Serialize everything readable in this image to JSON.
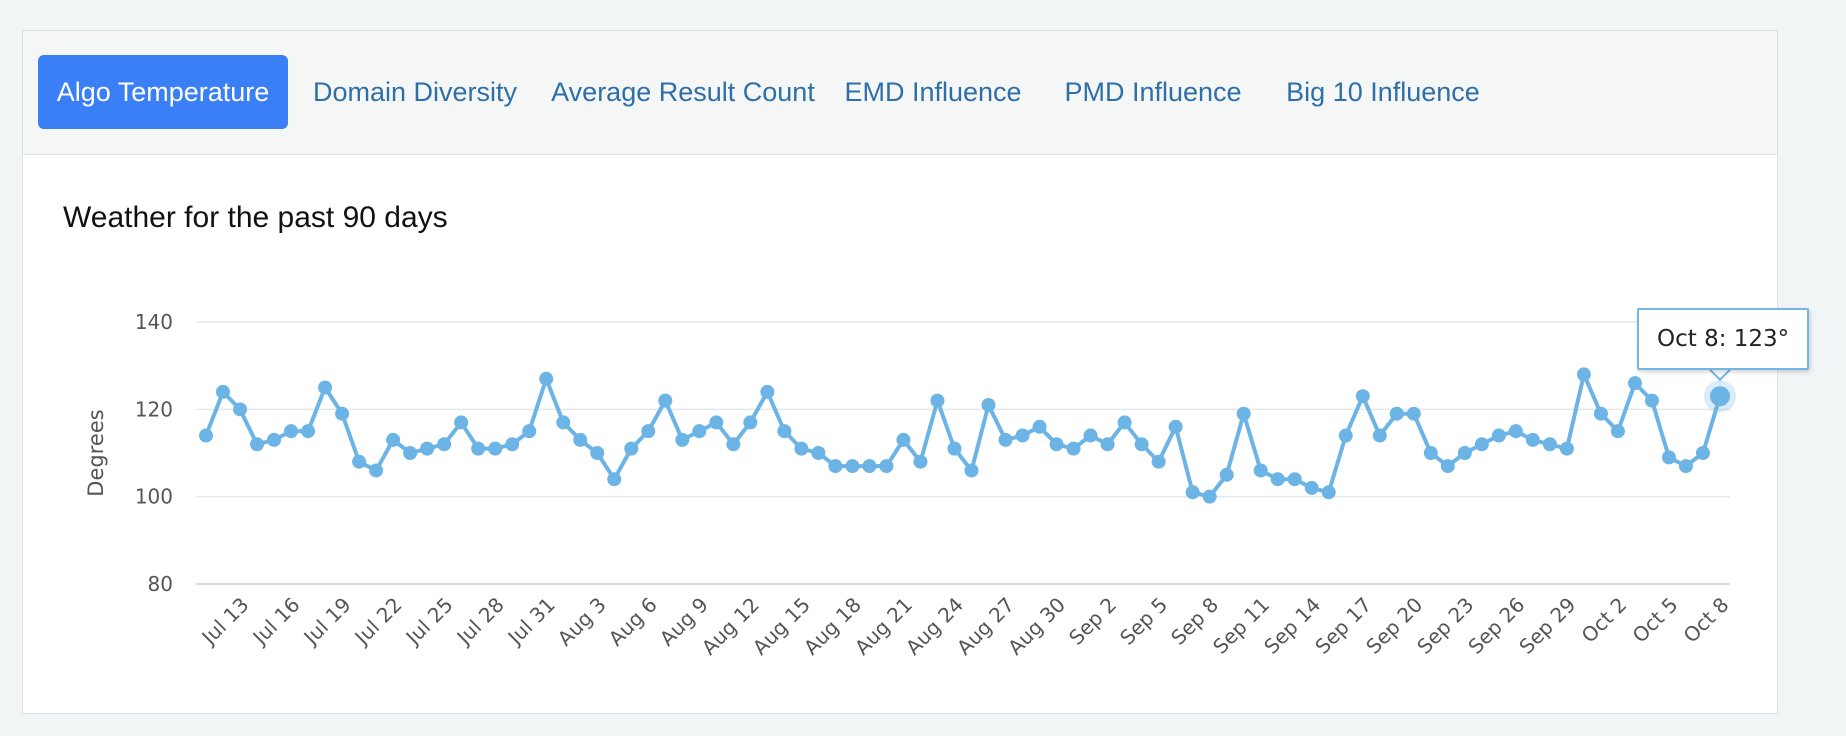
{
  "tabs": [
    {
      "label": "Algo Temperature",
      "active": true
    },
    {
      "label": "Domain Diversity",
      "active": false
    },
    {
      "label": "Average Result Count",
      "active": false
    },
    {
      "label": "EMD Influence",
      "active": false
    },
    {
      "label": "PMD Influence",
      "active": false
    },
    {
      "label": "Big 10 Influence",
      "active": false
    }
  ],
  "colors": {
    "accent": "#3a7ff6",
    "line": "#6cb4e6",
    "tab_text": "#2e6fa8"
  },
  "tooltip": {
    "text": "Oct 8: 123°"
  },
  "chart_data": {
    "type": "line",
    "title": "Weather for the past 90 days",
    "xlabel": "",
    "ylabel": "Degrees",
    "ylim": [
      80,
      140
    ],
    "yticks": [
      80,
      100,
      120,
      140
    ],
    "grid": true,
    "x": [
      "Jul 11",
      "Jul 12",
      "Jul 13",
      "Jul 14",
      "Jul 15",
      "Jul 16",
      "Jul 17",
      "Jul 18",
      "Jul 19",
      "Jul 20",
      "Jul 21",
      "Jul 22",
      "Jul 23",
      "Jul 24",
      "Jul 25",
      "Jul 26",
      "Jul 27",
      "Jul 28",
      "Jul 29",
      "Jul 30",
      "Jul 31",
      "Aug 1",
      "Aug 2",
      "Aug 3",
      "Aug 4",
      "Aug 5",
      "Aug 6",
      "Aug 7",
      "Aug 8",
      "Aug 9",
      "Aug 10",
      "Aug 11",
      "Aug 12",
      "Aug 13",
      "Aug 14",
      "Aug 15",
      "Aug 16",
      "Aug 17",
      "Aug 18",
      "Aug 19",
      "Aug 20",
      "Aug 21",
      "Aug 22",
      "Aug 23",
      "Aug 24",
      "Aug 25",
      "Aug 26",
      "Aug 27",
      "Aug 28",
      "Aug 29",
      "Aug 30",
      "Aug 31",
      "Sep 1",
      "Sep 2",
      "Sep 3",
      "Sep 4",
      "Sep 5",
      "Sep 6",
      "Sep 7",
      "Sep 8",
      "Sep 9",
      "Sep 10",
      "Sep 11",
      "Sep 12",
      "Sep 13",
      "Sep 14",
      "Sep 15",
      "Sep 16",
      "Sep 17",
      "Sep 18",
      "Sep 19",
      "Sep 20",
      "Sep 21",
      "Sep 22",
      "Sep 23",
      "Sep 24",
      "Sep 25",
      "Sep 26",
      "Sep 27",
      "Sep 28",
      "Sep 29",
      "Sep 30",
      "Oct 1",
      "Oct 2",
      "Oct 3",
      "Oct 4",
      "Oct 5",
      "Oct 6",
      "Oct 7",
      "Oct 8"
    ],
    "xticks": [
      "Jul 13",
      "Jul 16",
      "Jul 19",
      "Jul 22",
      "Jul 25",
      "Jul 28",
      "Jul 31",
      "Aug 3",
      "Aug 6",
      "Aug 9",
      "Aug 12",
      "Aug 15",
      "Aug 18",
      "Aug 21",
      "Aug 24",
      "Aug 27",
      "Aug 30",
      "Sep 2",
      "Sep 5",
      "Sep 8",
      "Sep 11",
      "Sep 14",
      "Sep 17",
      "Sep 20",
      "Sep 23",
      "Sep 26",
      "Sep 29",
      "Oct 2",
      "Oct 5",
      "Oct 8"
    ],
    "series": [
      {
        "values": [
          114,
          124,
          120,
          112,
          113,
          115,
          115,
          125,
          119,
          108,
          106,
          113,
          110,
          111,
          112,
          117,
          111,
          111,
          112,
          115,
          127,
          117,
          113,
          110,
          104,
          111,
          115,
          122,
          113,
          115,
          117,
          112,
          117,
          124,
          115,
          111,
          110,
          107,
          107,
          107,
          107,
          113,
          108,
          122,
          111,
          106,
          121,
          113,
          114,
          116,
          112,
          111,
          114,
          112,
          117,
          112,
          108,
          116,
          101,
          100,
          105,
          119,
          106,
          104,
          104,
          102,
          101,
          114,
          123,
          114,
          119,
          119,
          110,
          107,
          110,
          112,
          114,
          115,
          113,
          112,
          111,
          128,
          119,
          115,
          126,
          122,
          109,
          107,
          110,
          123
        ]
      }
    ],
    "highlight": {
      "x": "Oct 8",
      "y": 123
    }
  }
}
